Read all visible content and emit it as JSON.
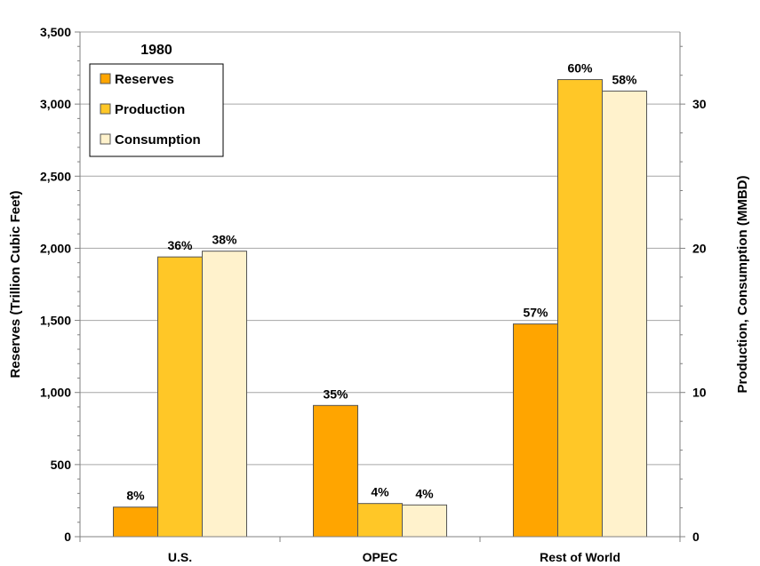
{
  "chart_data": {
    "type": "bar",
    "annotation": "1980",
    "categories": [
      "U.S.",
      "OPEC",
      "Rest of World"
    ],
    "series": [
      {
        "name": "Reserves",
        "axis": "left",
        "color": "#FFA500",
        "values": [
          205,
          910,
          1475
        ],
        "labels": [
          "8%",
          "35%",
          "57%"
        ]
      },
      {
        "name": "Production",
        "axis": "right",
        "color": "#FFC727",
        "values": [
          19.4,
          2.3,
          31.7
        ],
        "labels": [
          "36%",
          "4%",
          "60%"
        ]
      },
      {
        "name": "Consumption",
        "axis": "right",
        "color": "#FFF2CC",
        "values": [
          19.8,
          2.2,
          30.9
        ],
        "labels": [
          "38%",
          "4%",
          "58%"
        ]
      }
    ],
    "ylabel": "Reserves (Trillion Cubic Feet)",
    "y2label": "Production, Consumption (MMBD)",
    "ylim": [
      0,
      3500
    ],
    "y2lim": [
      0,
      35
    ],
    "yticks": [
      "0",
      "500",
      "1,000",
      "1,500",
      "2,000",
      "2,500",
      "3,000",
      "3,500"
    ],
    "y2ticks": [
      "0",
      "10",
      "20",
      "30"
    ],
    "y2tick_values": [
      0,
      10,
      20,
      30
    ],
    "grid": true,
    "legend_position": "top-left"
  }
}
